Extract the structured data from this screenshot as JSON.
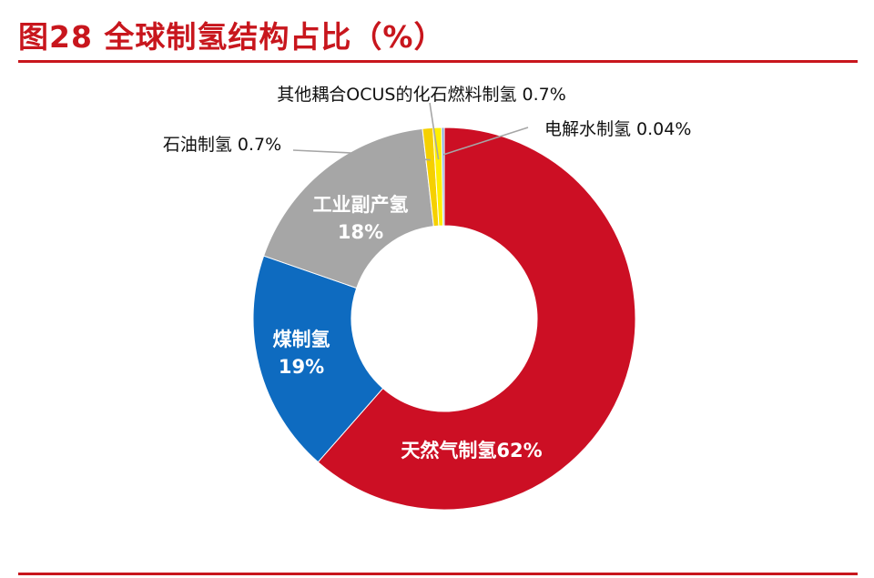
{
  "figure": {
    "title": "图28 全球制氢结构占比（%）"
  },
  "colors": {
    "accent": "#c8161d"
  },
  "chart_data": {
    "type": "pie",
    "donut": true,
    "title": "全球制氢结构占比（%）",
    "slices": [
      {
        "label": "天然气制氢",
        "value_text": "62%",
        "value": 62,
        "color": "#cc0f24"
      },
      {
        "label": "煤制氢",
        "value_text": "19%",
        "value": 19,
        "color": "#0e6bc0"
      },
      {
        "label": "工业副产氢",
        "value_text": "18%",
        "value": 18,
        "color": "#a6a6a6"
      },
      {
        "label": "石油制氢",
        "value_text": "0.7%",
        "value": 0.7,
        "color": "#f5d000"
      },
      {
        "label": "其他耦合OCUS的化石燃料制氢",
        "value_text": "0.7%",
        "value": 0.7,
        "color": "#ffef00"
      },
      {
        "label": "电解水制氢",
        "value_text": "0.04%",
        "value": 0.04,
        "color": "#7fa8d6"
      }
    ]
  }
}
